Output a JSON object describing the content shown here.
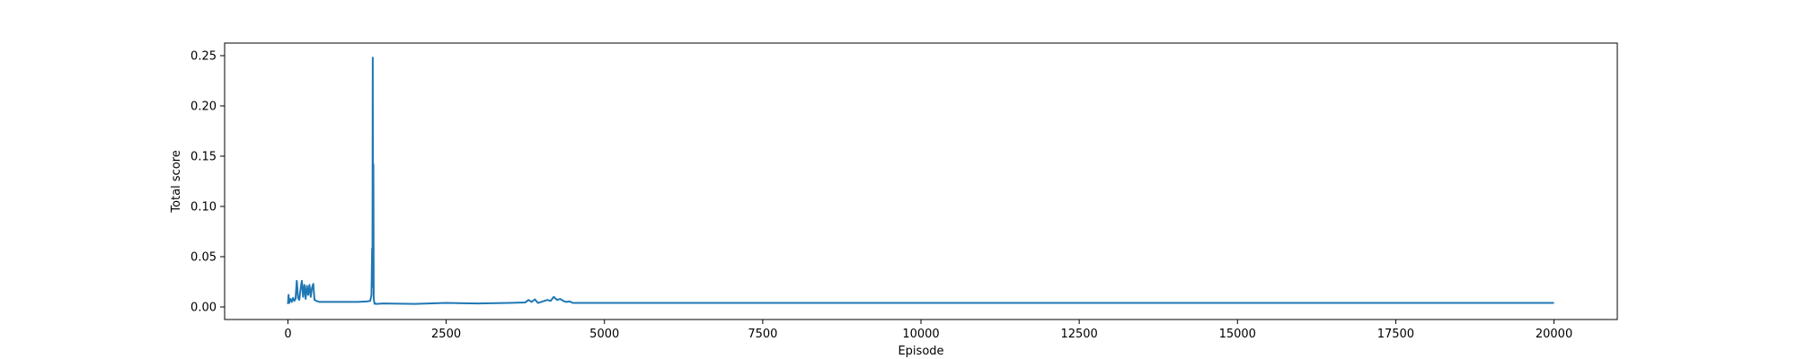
{
  "chart_data": {
    "type": "line",
    "title": "",
    "xlabel": "Episode",
    "ylabel": "Total score",
    "xlim": [
      -1000,
      21000
    ],
    "ylim": [
      -0.0125,
      0.2625
    ],
    "xticks": [
      0,
      2500,
      5000,
      7500,
      10000,
      12500,
      15000,
      17500,
      20000
    ],
    "xtick_labels": [
      "0",
      "2500",
      "5000",
      "7500",
      "10000",
      "12500",
      "15000",
      "17500",
      "20000"
    ],
    "yticks": [
      0.0,
      0.05,
      0.1,
      0.15,
      0.2,
      0.25
    ],
    "ytick_labels": [
      "0.00",
      "0.05",
      "0.10",
      "0.15",
      "0.20",
      "0.25"
    ],
    "grid": false,
    "line_color": "#1f77b4",
    "series": [
      {
        "x": [
          0,
          10,
          20,
          40,
          60,
          80,
          100,
          120,
          140,
          160,
          180,
          200,
          220,
          240,
          260,
          280,
          300,
          320,
          340,
          360,
          380,
          400,
          420,
          450,
          500,
          700,
          900,
          1100,
          1250,
          1300,
          1320,
          1330,
          1335,
          1340,
          1345,
          1350,
          1355,
          1360,
          1365,
          1370,
          1380,
          1400,
          1500,
          2000,
          2500,
          3000,
          3500,
          3750,
          3800,
          3850,
          3900,
          3950,
          4000,
          4100,
          4150,
          4200,
          4250,
          4300,
          4350,
          4400,
          4450,
          4500,
          5000,
          7500,
          10000,
          12500,
          15000,
          17500,
          19000,
          20000
        ],
        "y": [
          0.003,
          0.012,
          0.004,
          0.008,
          0.005,
          0.009,
          0.006,
          0.008,
          0.026,
          0.009,
          0.007,
          0.018,
          0.026,
          0.01,
          0.022,
          0.008,
          0.021,
          0.012,
          0.022,
          0.01,
          0.019,
          0.023,
          0.007,
          0.006,
          0.005,
          0.005,
          0.005,
          0.005,
          0.0055,
          0.006,
          0.012,
          0.058,
          0.02,
          0.248,
          0.03,
          0.142,
          0.01,
          0.006,
          0.004,
          0.003,
          0.0035,
          0.003,
          0.0035,
          0.003,
          0.004,
          0.0035,
          0.004,
          0.0045,
          0.007,
          0.005,
          0.0075,
          0.004,
          0.005,
          0.007,
          0.006,
          0.01,
          0.007,
          0.008,
          0.006,
          0.005,
          0.0055,
          0.004,
          0.004,
          0.004,
          0.004,
          0.004,
          0.004,
          0.004,
          0.004,
          0.004
        ]
      }
    ]
  }
}
